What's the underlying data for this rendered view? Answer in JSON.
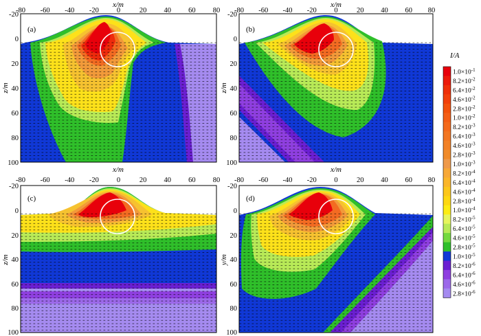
{
  "chart_data": [
    {
      "type": "heatmap",
      "panel_label": "(a)",
      "xlabel": "x/m",
      "ylabel": "z/m",
      "xlim": [
        -80,
        80
      ],
      "ylim": [
        100,
        -20
      ],
      "x_ticks": [
        "-80",
        "-60",
        "-40",
        "-20",
        "0",
        "20",
        "40",
        "60",
        "80"
      ],
      "y_ticks": [
        "-20",
        "0",
        "20",
        "40",
        "60",
        "80",
        "100"
      ],
      "anomaly_circle": {
        "center_x": 0,
        "center_z": 3,
        "radius": 12
      }
    },
    {
      "type": "heatmap",
      "panel_label": "(b)",
      "xlabel": "x/m",
      "ylabel": "z/m",
      "xlim": [
        -80,
        80
      ],
      "ylim": [
        100,
        -20
      ],
      "x_ticks": [
        "-80",
        "-60",
        "-40",
        "-20",
        "0",
        "20",
        "40",
        "60",
        "80"
      ],
      "y_ticks": [
        "-20",
        "0",
        "20",
        "40",
        "60",
        "80",
        "100"
      ],
      "anomaly_circle": {
        "center_x": 0,
        "center_z": 3,
        "radius": 12
      }
    },
    {
      "type": "heatmap",
      "panel_label": "(c)",
      "xlabel": "x/m",
      "ylabel": "z/m",
      "xlim": [
        -80,
        80
      ],
      "ylim": [
        100,
        -20
      ],
      "x_ticks": [
        "-80",
        "-60",
        "-40",
        "-20",
        "0",
        "20",
        "40",
        "60",
        "80"
      ],
      "y_ticks": [
        "-20",
        "0",
        "20",
        "40",
        "60",
        "80",
        "100"
      ],
      "anomaly_circle": {
        "center_x": 0,
        "center_z": 3,
        "radius": 12
      }
    },
    {
      "type": "heatmap",
      "panel_label": "(d)",
      "xlabel": "x/m",
      "ylabel": "y/m",
      "xlim": [
        -80,
        80
      ],
      "ylim": [
        100,
        -20
      ],
      "x_ticks": [
        "-80",
        "-60",
        "-40",
        "-20",
        "0",
        "20",
        "40",
        "60",
        "80"
      ],
      "y_ticks": [
        "-20",
        "0",
        "20",
        "40",
        "60",
        "80",
        "100"
      ],
      "anomaly_circle": {
        "center_x": 0,
        "center_z": 3,
        "radius": 12
      }
    }
  ],
  "colorbar": {
    "title": "I/A",
    "levels": [
      {
        "mant": "1.0",
        "exp": "-1",
        "color": "#e8000b"
      },
      {
        "mant": "8.2",
        "exp": "-2",
        "color": "#ec1a0a"
      },
      {
        "mant": "6.4",
        "exp": "-2",
        "color": "#ef2f08"
      },
      {
        "mant": "4.6",
        "exp": "-2",
        "color": "#f23f0a"
      },
      {
        "mant": "2.8",
        "exp": "-2",
        "color": "#f3510c"
      },
      {
        "mant": "1.0",
        "exp": "-2",
        "color": "#f45e16"
      },
      {
        "mant": "8.2",
        "exp": "-3",
        "color": "#f46a1c"
      },
      {
        "mant": "6.4",
        "exp": "-3",
        "color": "#f27622"
      },
      {
        "mant": "4.6",
        "exp": "-3",
        "color": "#f28126"
      },
      {
        "mant": "2.8",
        "exp": "-3",
        "color": "#f08b2a"
      },
      {
        "mant": "1.0",
        "exp": "-3",
        "color": "#ef9a4a"
      },
      {
        "mant": "8.2",
        "exp": "-4",
        "color": "#f7a838"
      },
      {
        "mant": "6.4",
        "exp": "-4",
        "color": "#fbb62a"
      },
      {
        "mant": "4.6",
        "exp": "-4",
        "color": "#fcc71c"
      },
      {
        "mant": "2.8",
        "exp": "-4",
        "color": "#fdd813"
      },
      {
        "mant": "1.0",
        "exp": "-4",
        "color": "#fcec14"
      },
      {
        "mant": "8.2",
        "exp": "-5",
        "color": "#e7f55d"
      },
      {
        "mant": "6.4",
        "exp": "-5",
        "color": "#b8ea57"
      },
      {
        "mant": "4.6",
        "exp": "-5",
        "color": "#74d93f"
      },
      {
        "mant": "2.8",
        "exp": "-5",
        "color": "#2fbf2a"
      },
      {
        "mant": "1.0",
        "exp": "-5",
        "color": "#1038d6"
      },
      {
        "mant": "8.2",
        "exp": "-6",
        "color": "#6b1fd2"
      },
      {
        "mant": "6.4",
        "exp": "-6",
        "color": "#8f3fe0"
      },
      {
        "mant": "4.6",
        "exp": "-6",
        "color": "#9c69ea"
      },
      {
        "mant": "2.8",
        "exp": "-6",
        "color": "#a58bf0"
      }
    ]
  },
  "palette": {
    "red": "#e8000b",
    "orange": "#f28126",
    "yellow": "#fde11a",
    "pale": "#f2f59a",
    "green": "#2fbf2a",
    "blue": "#1038d6",
    "purple": "#8e4fe6",
    "lavender": "#a58bf0",
    "white": "#ffffff"
  }
}
